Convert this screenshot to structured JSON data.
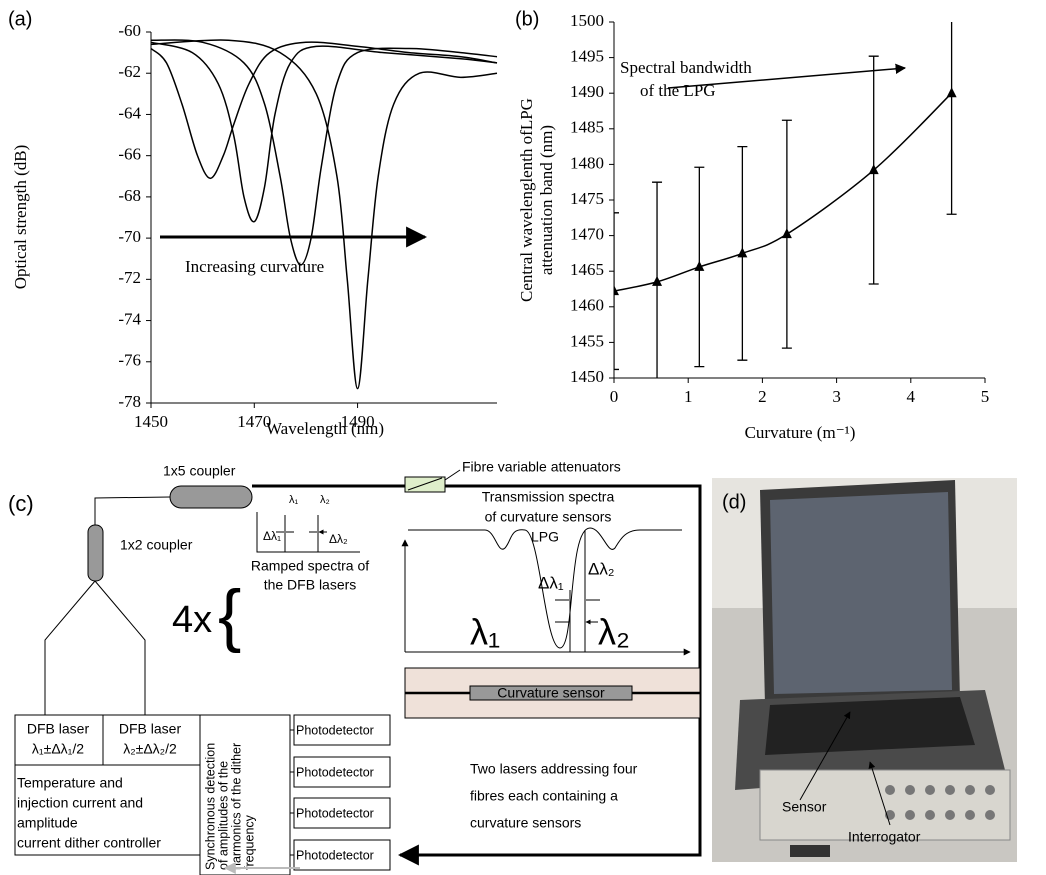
{
  "chart_data": [
    {
      "type": "line",
      "panel_label": "(a)",
      "x_label": "Wavelength (nm)",
      "y_label": "Optical strength (dB)",
      "annotation": "Increasing curvature",
      "xlim": [
        1450,
        1517
      ],
      "xticks": [
        1450,
        1470,
        1490
      ],
      "ylim": [
        -78,
        -60
      ],
      "yticks": [
        -78,
        -76,
        -74,
        -72,
        -70,
        -68,
        -66,
        -64,
        -62,
        -60
      ],
      "series": [
        {
          "color": "#000000",
          "x": [
            1450,
            1453,
            1456,
            1459,
            1461.5,
            1464,
            1466,
            1469,
            1473,
            1480,
            1490,
            1500,
            1510,
            1517
          ],
          "values": [
            -60.8,
            -61.5,
            -63.5,
            -66,
            -67.1,
            -66,
            -64.5,
            -62.5,
            -61,
            -60.5,
            -60.7,
            -61,
            -61.2,
            -61.5
          ]
        },
        {
          "color": "#000000",
          "x": [
            1450,
            1458,
            1463,
            1466,
            1468,
            1470,
            1472,
            1474,
            1477,
            1482,
            1495,
            1510,
            1517
          ],
          "values": [
            -60.5,
            -61,
            -62.5,
            -65,
            -68,
            -69.2,
            -67.5,
            -64,
            -61.5,
            -60.7,
            -61,
            -61.3,
            -61.5
          ]
        },
        {
          "color": "#000000",
          "x": [
            1450,
            1460,
            1468,
            1472,
            1475,
            1477,
            1479,
            1481,
            1483,
            1486,
            1490,
            1500,
            1510,
            1517
          ],
          "values": [
            -60.4,
            -60.5,
            -61.5,
            -63.5,
            -67,
            -70,
            -71.3,
            -70,
            -66.5,
            -62.5,
            -61,
            -60.8,
            -61,
            -61.2
          ]
        },
        {
          "color": "#000000",
          "x": [
            1450,
            1465,
            1475,
            1482,
            1486,
            1488,
            1490,
            1492,
            1494,
            1497,
            1502,
            1510,
            1517
          ],
          "values": [
            -60.6,
            -60.4,
            -61,
            -63,
            -67,
            -72,
            -77.3,
            -72,
            -67,
            -63.5,
            -62,
            -62.2,
            -62
          ]
        }
      ]
    },
    {
      "type": "line",
      "panel_label": "(b)",
      "x_label": "Curvature (m⁻¹)",
      "y_label": [
        "Central wavelenglenth ofLPG",
        "attenuation band (nm)"
      ],
      "annotation": [
        "Spectral bandwidth",
        "of the LPG"
      ],
      "xlim": [
        0,
        5
      ],
      "xticks": [
        0,
        1,
        2,
        3,
        4,
        5
      ],
      "ylim": [
        1450,
        1500
      ],
      "yticks": [
        1450,
        1455,
        1460,
        1465,
        1470,
        1475,
        1480,
        1485,
        1490,
        1495,
        1500
      ],
      "series": [
        {
          "color": "#000000",
          "x": [
            0,
            0.58,
            1.15,
            1.73,
            2.33,
            3.5,
            4.55
          ],
          "values": [
            1462.2,
            1463.5,
            1465.6,
            1467.5,
            1470.2,
            1479.2,
            1490
          ],
          "errors": [
            11,
            14,
            14,
            15,
            16,
            16,
            17
          ]
        }
      ]
    }
  ],
  "diagram": {
    "panel_label": "(c)",
    "coupler_1x5": "1x5 coupler",
    "coupler_1x2": "1x2 coupler",
    "attenuators": "Fibre variable attenuators",
    "transmission_title": [
      "Transmission spectra",
      "of curvature sensors"
    ],
    "lpg": "LPG",
    "ramped_title": [
      "Ramped spectra of",
      "the DFB lasers"
    ],
    "small_symbols": [
      "λ₁",
      "λ₂",
      "Δλ₁",
      "Δλ₂"
    ],
    "big_symbols": [
      "λ₁",
      "λ₂",
      "Δλ₁",
      "Δλ₂"
    ],
    "multiplier": "4x",
    "brace": "{",
    "sensor": "Curvature sensor",
    "lasers": [
      {
        "name": "DFB laser",
        "range": "λ₁±Δλ₁/2"
      },
      {
        "name": "DFB laser",
        "range": "λ₂±Δλ₂/2"
      }
    ],
    "controller": [
      "Temperature and",
      "injection current and",
      "amplitude",
      "current dither controller"
    ],
    "detection": [
      "Synchronous detection",
      "of amplitudes of the",
      "harmonics of the dither",
      "frequency"
    ],
    "photodetectors": [
      "Photodetector",
      "Photodetector",
      "Photodetector",
      "Photodetector"
    ],
    "note": [
      "Two lasers addressing  four",
      "fibres each containing a",
      "curvature sensors"
    ]
  },
  "photo": {
    "panel_label": "(d)",
    "labels": [
      "Sensor",
      "Interrogator"
    ]
  }
}
